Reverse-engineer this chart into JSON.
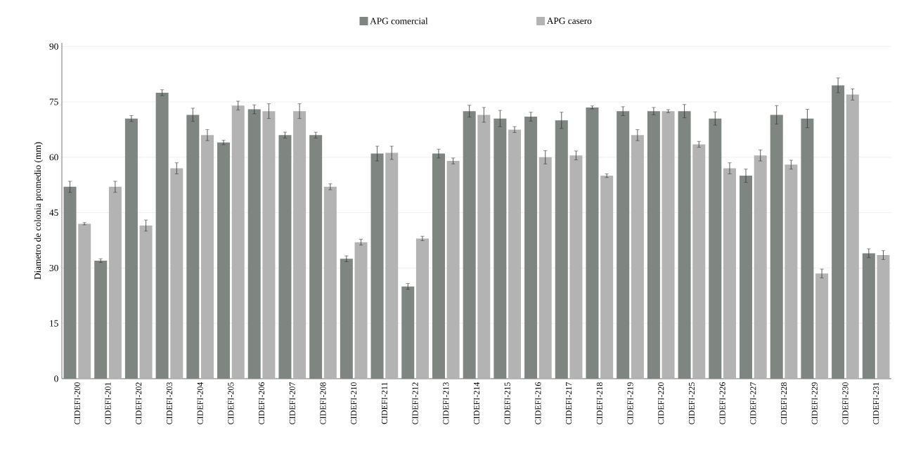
{
  "chart_data": {
    "type": "bar",
    "ylabel": "Diametro de colonia promedio (mm)",
    "categories": [
      "CIDEFI-200",
      "CIDEFI-201",
      "CIDEFI-202",
      "CIDEFI-203",
      "CIDEFI-204",
      "CIDEFI-205",
      "CIDEFI-206",
      "CIDEFI-207",
      "CIDEFI-208",
      "CIDEFI-210",
      "CIDEFI-211",
      "CIDEFI-212",
      "CIDEFI-213",
      "CIDEFI-214",
      "CIDEFI-215",
      "CIDEFI-216",
      "CIDEFI-217",
      "CIDEFI-218",
      "CIDEFI-219",
      "CIDEFI-220",
      "CIDEFI-225",
      "CIDEFI-226",
      "CIDEFI-227",
      "CIDEFI-228",
      "CIDEFI-229",
      "CIDEFI-230",
      "CIDEFI-231"
    ],
    "series": [
      {
        "name": "APG comercial",
        "color": "#7f8581",
        "values": [
          52,
          32,
          70.5,
          77.5,
          71.5,
          64,
          73,
          66,
          66,
          32.5,
          61,
          25,
          61,
          72.5,
          70.5,
          71,
          70,
          73.5,
          72.5,
          72.5,
          72.5,
          70.5,
          55,
          71.5,
          70.5,
          79.5,
          34
        ],
        "errors": [
          1.5,
          0.5,
          0.8,
          0.8,
          1.8,
          0.6,
          1.2,
          0.8,
          0.8,
          0.8,
          2,
          0.8,
          1.2,
          1.6,
          2.2,
          1.2,
          2.2,
          0.4,
          1.2,
          1,
          1.8,
          1.8,
          1.8,
          2.5,
          2.5,
          2,
          1.2
        ]
      },
      {
        "name": "APG casero",
        "color": "#b3b3b3",
        "values": [
          42,
          52,
          41.5,
          57,
          66,
          74,
          72.5,
          72.5,
          52,
          37,
          61.2,
          38,
          59,
          71.5,
          67.5,
          60,
          60.5,
          55,
          66,
          72.5,
          63.5,
          57,
          60.5,
          58,
          28.5,
          77,
          33.5
        ],
        "errors": [
          0.3,
          1.5,
          1.5,
          1.5,
          1.5,
          1.2,
          2,
          2,
          0.8,
          0.8,
          1.8,
          0.6,
          0.8,
          2,
          0.8,
          1.8,
          1.2,
          0.5,
          1.5,
          0.4,
          0.8,
          1.5,
          1.5,
          1.2,
          1.2,
          1.5,
          1.2
        ]
      }
    ],
    "ylim": [
      0,
      91
    ],
    "yticks": [
      0,
      15,
      30,
      45,
      60,
      75,
      90
    ],
    "grid": "y",
    "legend": "top"
  }
}
